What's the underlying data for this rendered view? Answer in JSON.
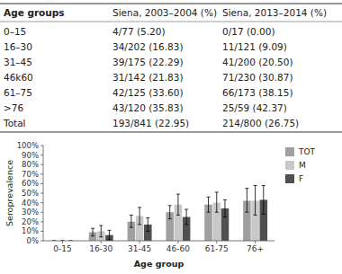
{
  "chart_data": [
    {
      "type": "table",
      "columns": [
        "Age groups",
        "Siena, 2003–2004 (%)",
        "Siena, 2013–2014 (%)"
      ],
      "rows": [
        [
          "0–15",
          "4/77 (5.20)",
          "0/17 (0.00)"
        ],
        [
          "16–30",
          "34/202 (16.83)",
          "11/121 (9.09)"
        ],
        [
          "31–45",
          "39/175 (22.29)",
          "41/200 (20.50)"
        ],
        [
          "46k60",
          "31/142 (21.83)",
          "71/230 (30.87)"
        ],
        [
          "61–75",
          "42/125 (33.60)",
          "66/173 (38.15)"
        ],
        [
          ">76",
          "43/120 (35.83)",
          "25/59 (42.37)"
        ],
        [
          "Total",
          "193/841 (22.95)",
          "214/800 (26.75)"
        ]
      ]
    },
    {
      "type": "bar",
      "xlabel": "Age group",
      "ylabel": "Seroprevalence",
      "categories": [
        "0-15",
        "16-30",
        "31-45",
        "46-60",
        "61-75",
        "76+"
      ],
      "series": [
        {
          "name": "TOT",
          "color": "#a0a0a0",
          "values": [
            0.0,
            0.09,
            0.2,
            0.3,
            0.38,
            0.42
          ],
          "ci_low": [
            0.0,
            0.05,
            0.14,
            0.23,
            0.3,
            0.3
          ],
          "ci_high": [
            0.0,
            0.13,
            0.27,
            0.37,
            0.46,
            0.55
          ]
        },
        {
          "name": "M",
          "color": "#c8c8c8",
          "values": [
            0.0,
            0.1,
            0.26,
            0.38,
            0.4,
            0.42
          ],
          "ci_low": [
            0.0,
            0.04,
            0.17,
            0.27,
            0.3,
            0.27
          ],
          "ci_high": [
            0.0,
            0.16,
            0.35,
            0.49,
            0.51,
            0.58
          ]
        },
        {
          "name": "F",
          "color": "#505050",
          "values": [
            0.0,
            0.06,
            0.17,
            0.25,
            0.34,
            0.43
          ],
          "ci_low": [
            0.0,
            0.01,
            0.1,
            0.17,
            0.25,
            0.28
          ],
          "ci_high": [
            0.0,
            0.11,
            0.24,
            0.33,
            0.43,
            0.58
          ]
        }
      ],
      "ylim": [
        0,
        1.0
      ],
      "yticks": [
        {
          "value": 0.0,
          "label": "0%"
        },
        {
          "value": 0.1,
          "label": "10%"
        },
        {
          "value": 0.2,
          "label": "20%"
        },
        {
          "value": 0.3,
          "label": "30%"
        },
        {
          "value": 0.4,
          "label": "40%"
        },
        {
          "value": 0.5,
          "label": "50%"
        },
        {
          "value": 0.6,
          "label": "60%"
        },
        {
          "value": 0.7,
          "label": "70%"
        },
        {
          "value": 0.8,
          "label": "80%"
        },
        {
          "value": 0.9,
          "label": "90%"
        },
        {
          "value": 1.0,
          "label": "100%"
        }
      ],
      "grid": false,
      "legend": "right"
    }
  ]
}
